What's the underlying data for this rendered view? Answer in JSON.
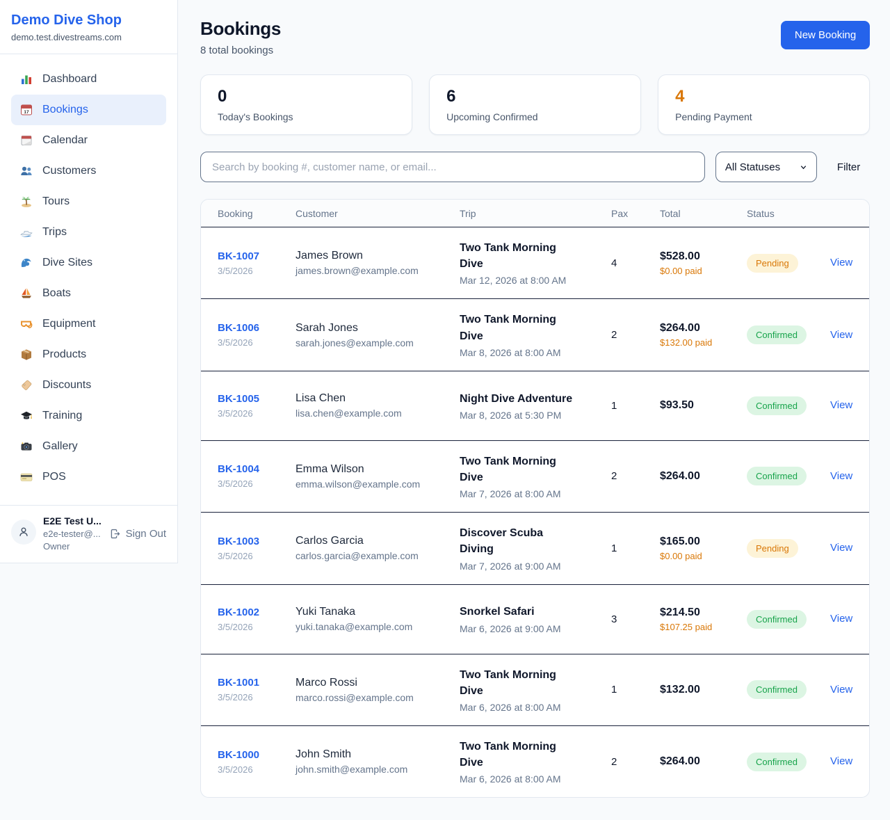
{
  "sidebar": {
    "brand": {
      "name": "Demo Dive Shop",
      "domain": "demo.test.divestreams.com"
    },
    "items": [
      {
        "label": "Dashboard",
        "icon": "bar-chart",
        "active": false
      },
      {
        "label": "Bookings",
        "icon": "calendar-date",
        "active": true
      },
      {
        "label": "Calendar",
        "icon": "tear-calendar",
        "active": false
      },
      {
        "label": "Customers",
        "icon": "people",
        "active": false
      },
      {
        "label": "Tours",
        "icon": "island",
        "active": false
      },
      {
        "label": "Trips",
        "icon": "speedboat",
        "active": false
      },
      {
        "label": "Dive Sites",
        "icon": "wave",
        "active": false
      },
      {
        "label": "Boats",
        "icon": "sailboat",
        "active": false
      },
      {
        "label": "Equipment",
        "icon": "dive-mask",
        "active": false
      },
      {
        "label": "Products",
        "icon": "package",
        "active": false
      },
      {
        "label": "Discounts",
        "icon": "tag",
        "active": false
      },
      {
        "label": "Training",
        "icon": "grad-cap",
        "active": false
      },
      {
        "label": "Gallery",
        "icon": "camera",
        "active": false
      },
      {
        "label": "POS",
        "icon": "credit-card",
        "active": false
      }
    ],
    "user": {
      "name": "E2E Test U...",
      "email": "e2e-tester@...",
      "role": "Owner",
      "sign_out_label": "Sign Out"
    }
  },
  "header": {
    "title": "Bookings",
    "subtitle": "8 total bookings",
    "new_booking_label": "New Booking"
  },
  "stats": [
    {
      "value": "0",
      "label": "Today's Bookings",
      "accent": "#0f172a"
    },
    {
      "value": "6",
      "label": "Upcoming Confirmed",
      "accent": "#0f172a"
    },
    {
      "value": "4",
      "label": "Pending Payment",
      "accent": "#d97706"
    }
  ],
  "controls": {
    "search_placeholder": "Search by booking #, customer name, or email...",
    "search_value": "",
    "status_filter": "All Statuses",
    "filter_label": "Filter"
  },
  "table": {
    "columns": [
      "Booking",
      "Customer",
      "Trip",
      "Pax",
      "Total",
      "Status"
    ],
    "rows": [
      {
        "id": "BK-1007",
        "date": "3/5/2026",
        "customer": "James Brown",
        "email": "james.brown@example.com",
        "trip": "Two Tank Morning Dive",
        "trip_datetime": "Mar 12, 2026 at 8:00 AM",
        "pax": "4",
        "total": "$528.00",
        "paid": "$0.00 paid",
        "status": "Pending",
        "status_type": "pending",
        "action": "View"
      },
      {
        "id": "BK-1006",
        "date": "3/5/2026",
        "customer": "Sarah Jones",
        "email": "sarah.jones@example.com",
        "trip": "Two Tank Morning Dive",
        "trip_datetime": "Mar 8, 2026 at 8:00 AM",
        "pax": "2",
        "total": "$264.00",
        "paid": "$132.00 paid",
        "status": "Confirmed",
        "status_type": "confirmed",
        "action": "View"
      },
      {
        "id": "BK-1005",
        "date": "3/5/2026",
        "customer": "Lisa Chen",
        "email": "lisa.chen@example.com",
        "trip": "Night Dive Adventure",
        "trip_datetime": "Mar 8, 2026 at 5:30 PM",
        "pax": "1",
        "total": "$93.50",
        "paid": null,
        "status": "Confirmed",
        "status_type": "confirmed",
        "action": "View"
      },
      {
        "id": "BK-1004",
        "date": "3/5/2026",
        "customer": "Emma Wilson",
        "email": "emma.wilson@example.com",
        "trip": "Two Tank Morning Dive",
        "trip_datetime": "Mar 7, 2026 at 8:00 AM",
        "pax": "2",
        "total": "$264.00",
        "paid": null,
        "status": "Confirmed",
        "status_type": "confirmed",
        "action": "View"
      },
      {
        "id": "BK-1003",
        "date": "3/5/2026",
        "customer": "Carlos Garcia",
        "email": "carlos.garcia@example.com",
        "trip": "Discover Scuba Diving",
        "trip_datetime": "Mar 7, 2026 at 9:00 AM",
        "pax": "1",
        "total": "$165.00",
        "paid": "$0.00 paid",
        "status": "Pending",
        "status_type": "pending",
        "action": "View"
      },
      {
        "id": "BK-1002",
        "date": "3/5/2026",
        "customer": "Yuki Tanaka",
        "email": "yuki.tanaka@example.com",
        "trip": "Snorkel Safari",
        "trip_datetime": "Mar 6, 2026 at 9:00 AM",
        "pax": "3",
        "total": "$214.50",
        "paid": "$107.25 paid",
        "status": "Confirmed",
        "status_type": "confirmed",
        "action": "View"
      },
      {
        "id": "BK-1001",
        "date": "3/5/2026",
        "customer": "Marco Rossi",
        "email": "marco.rossi@example.com",
        "trip": "Two Tank Morning Dive",
        "trip_datetime": "Mar 6, 2026 at 8:00 AM",
        "pax": "1",
        "total": "$132.00",
        "paid": null,
        "status": "Confirmed",
        "status_type": "confirmed",
        "action": "View"
      },
      {
        "id": "BK-1000",
        "date": "3/5/2026",
        "customer": "John Smith",
        "email": "john.smith@example.com",
        "trip": "Two Tank Morning Dive",
        "trip_datetime": "Mar 6, 2026 at 8:00 AM",
        "pax": "2",
        "total": "$264.00",
        "paid": null,
        "status": "Confirmed",
        "status_type": "confirmed",
        "action": "View"
      }
    ]
  },
  "colors": {
    "primary_blue": "#2563eb",
    "pending_text": "#d97706",
    "pending_bg": "#fdf3d7",
    "confirmed_text": "#16a34a",
    "confirmed_bg": "#dcf5e3",
    "page_bg": "#f8fafc"
  }
}
